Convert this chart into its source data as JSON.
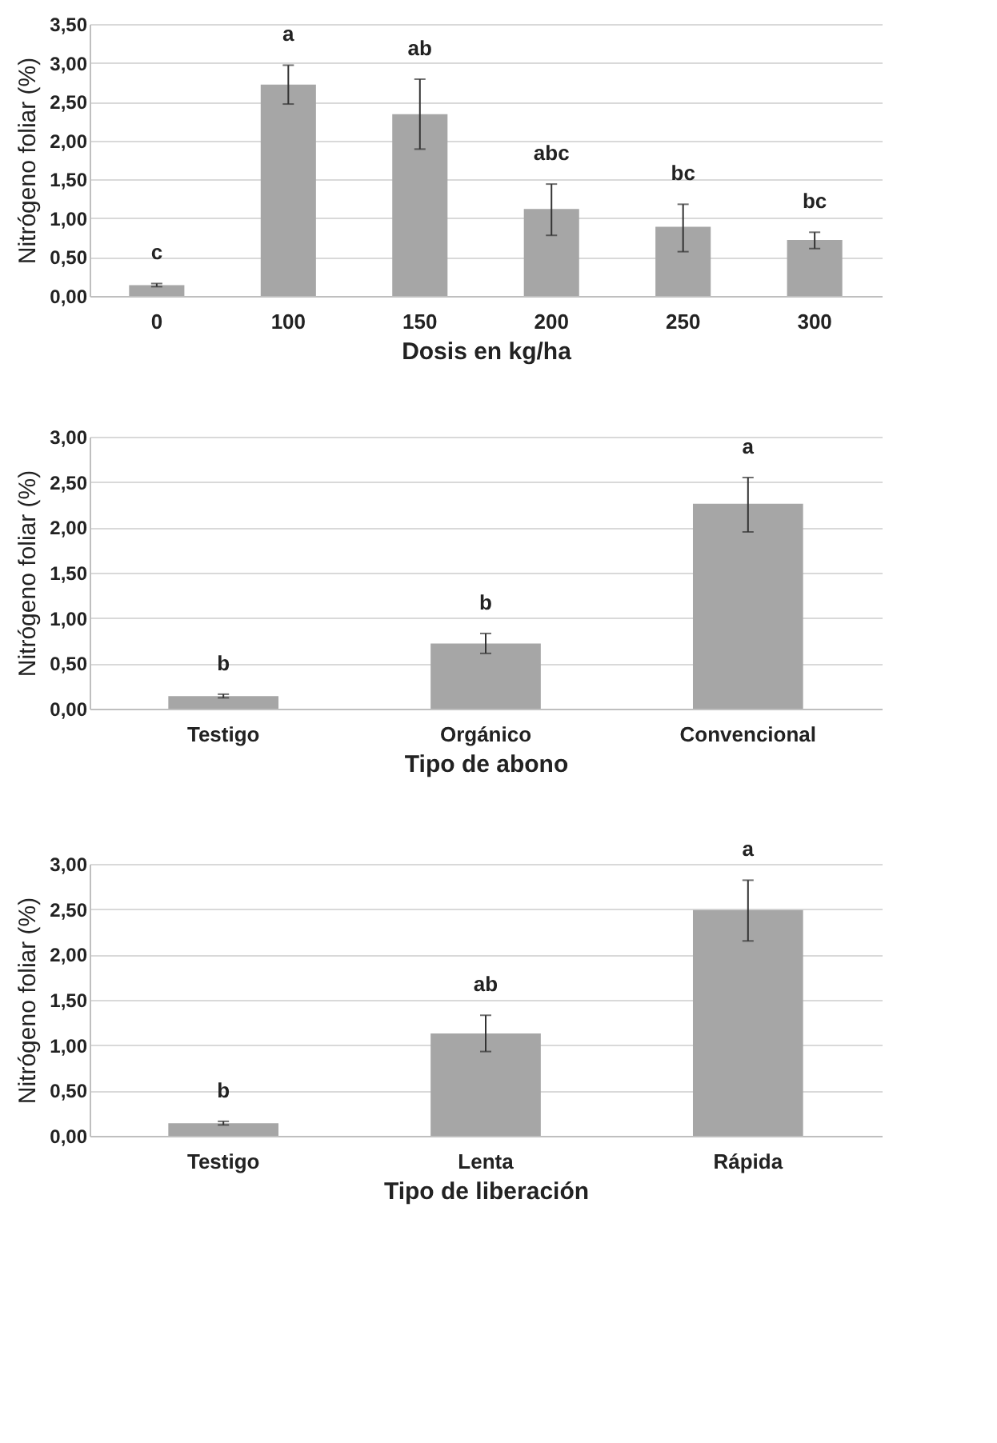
{
  "chart_data": [
    {
      "type": "bar",
      "xlabel": "Dosis en kg/ha",
      "ylabel": "Nitrógeno foliar (%)",
      "categories": [
        "0",
        "100",
        "150",
        "200",
        "250",
        "300"
      ],
      "values": [
        0.14,
        2.72,
        2.34,
        1.12,
        0.89,
        0.72
      ],
      "color": "#a6a6a6",
      "errors": [
        [
          0.12,
          0.16
        ],
        [
          2.47,
          2.97
        ],
        [
          1.89,
          2.79
        ],
        [
          0.78,
          1.44
        ],
        [
          0.57,
          1.18
        ],
        [
          0.61,
          0.82
        ]
      ],
      "ylim": [
        0,
        3.5
      ],
      "yticks": [
        {
          "value": 0,
          "label": "0,00"
        },
        {
          "value": 0.5,
          "label": "0,50"
        },
        {
          "value": 1,
          "label": "1,00"
        },
        {
          "value": 1.5,
          "label": "1,50"
        },
        {
          "value": 2,
          "label": "2,00"
        },
        {
          "value": 2.5,
          "label": "2,50"
        },
        {
          "value": 3,
          "label": "3,00"
        },
        {
          "value": 3.5,
          "label": "3,50"
        }
      ],
      "grid": "y",
      "annotations": [
        "c",
        "a",
        "ab",
        "abc",
        "bc",
        "bc"
      ]
    },
    {
      "type": "bar",
      "xlabel": "Tipo de abono",
      "ylabel": "Nitrógeno foliar (%)",
      "categories": [
        "Testigo",
        "Orgánico",
        "Convencional"
      ],
      "values": [
        0.14,
        0.72,
        2.26
      ],
      "color": "#a6a6a6",
      "errors": [
        [
          0.12,
          0.16
        ],
        [
          0.61,
          0.83
        ],
        [
          1.95,
          2.55
        ]
      ],
      "ylim": [
        0,
        3
      ],
      "yticks": [
        {
          "value": 0,
          "label": "0,00"
        },
        {
          "value": 0.5,
          "label": "0,50"
        },
        {
          "value": 1,
          "label": "1,00"
        },
        {
          "value": 1.5,
          "label": "1,50"
        },
        {
          "value": 2,
          "label": "2,00"
        },
        {
          "value": 2.5,
          "label": "2,50"
        },
        {
          "value": 3,
          "label": "3,00"
        }
      ],
      "grid": "y",
      "annotations": [
        "b",
        "b",
        "a"
      ]
    },
    {
      "type": "bar",
      "xlabel": "Tipo de liberación",
      "ylabel": "Nitrógeno foliar (%)",
      "categories": [
        "Testigo",
        "Lenta",
        "Rápida"
      ],
      "values": [
        0.14,
        1.13,
        2.49
      ],
      "color": "#a6a6a6",
      "errors": [
        [
          0.12,
          0.16
        ],
        [
          0.93,
          1.33
        ],
        [
          2.15,
          2.82
        ]
      ],
      "ylim": [
        0,
        3
      ],
      "yticks": [
        {
          "value": 0,
          "label": "0,00"
        },
        {
          "value": 0.5,
          "label": "0,50"
        },
        {
          "value": 1,
          "label": "1,00"
        },
        {
          "value": 1.5,
          "label": "1,50"
        },
        {
          "value": 2,
          "label": "2,00"
        },
        {
          "value": 2.5,
          "label": "2,50"
        },
        {
          "value": 3,
          "label": "3,00"
        }
      ],
      "grid": "y",
      "annotations": [
        "b",
        "ab",
        "a"
      ]
    }
  ]
}
